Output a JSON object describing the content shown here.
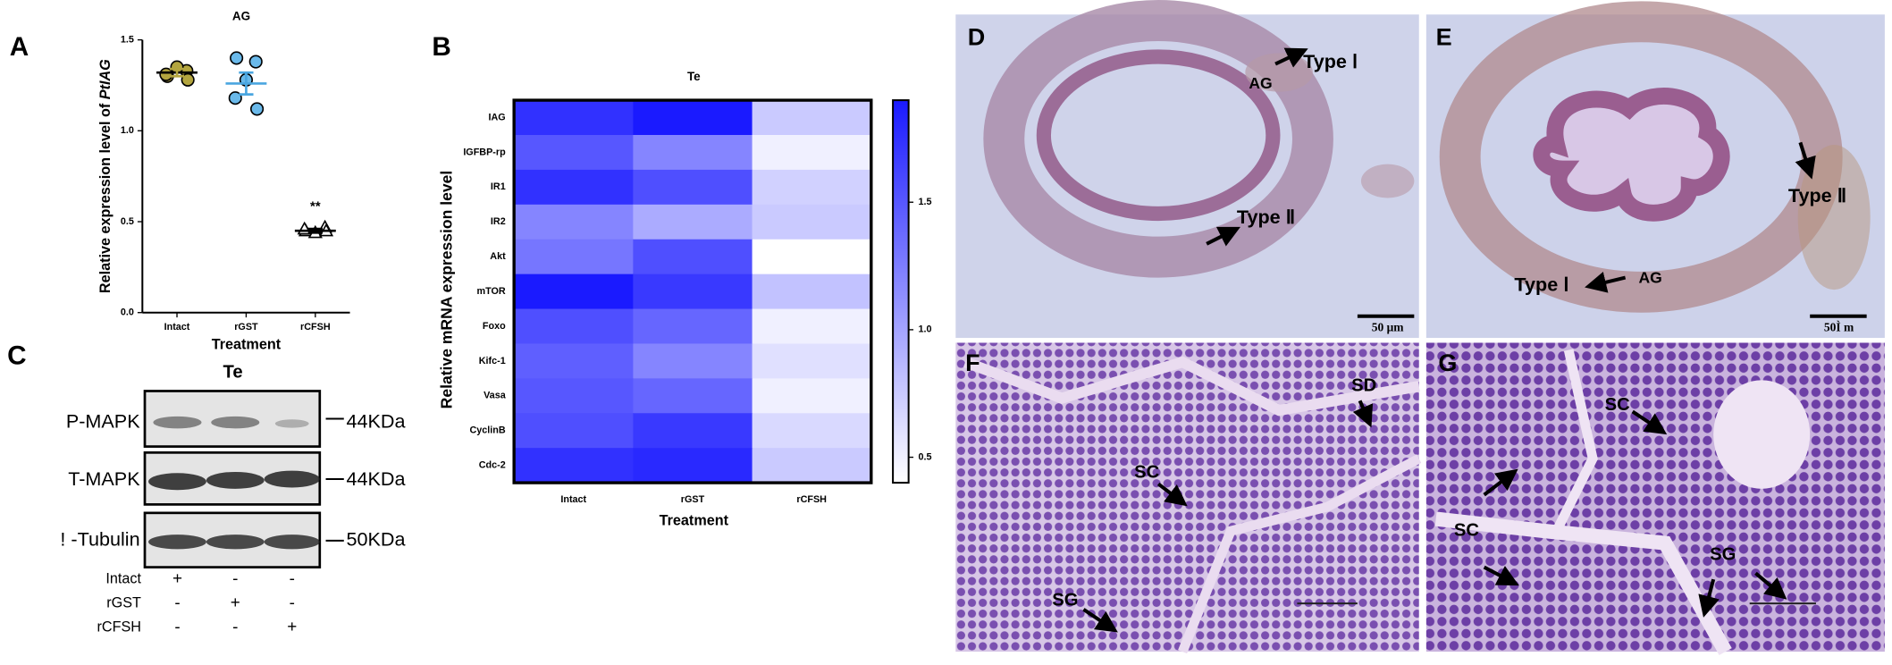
{
  "chart_data": [
    {
      "type": "dot",
      "panel": "A",
      "title": "AG",
      "ylabel": "Relative expression level of",
      "ylabel_gene": "PtIAG",
      "xlabel": "Treatment",
      "categories": [
        "Intact",
        "rGST",
        "rCFSH"
      ],
      "values": [
        [
          1.3,
          1.33,
          1.35,
          1.31,
          1.28
        ],
        [
          1.4,
          1.38,
          1.28,
          1.18,
          1.12
        ],
        [
          0.45,
          0.47,
          0.44,
          0.46,
          0.45
        ]
      ],
      "means": [
        1.32,
        1.26,
        0.45
      ],
      "errors": [
        0.02,
        0.06,
        0.01
      ],
      "colors": [
        "#b3a53f",
        "#6ab9ea",
        "#ffffff"
      ],
      "markers": [
        "circle",
        "circle",
        "triangle"
      ],
      "annotation": "**",
      "annotation_category": 2,
      "annotation_value": 0.58,
      "ylim": [
        0,
        1.5
      ],
      "yticks": [
        {
          "value": 0,
          "label": "0.0"
        },
        {
          "value": 0.5,
          "label": "0.5"
        },
        {
          "value": 1,
          "label": "1.0"
        },
        {
          "value": 1.5,
          "label": "1.5"
        }
      ]
    },
    {
      "type": "heatmap",
      "panel": "B",
      "title": "Te",
      "ylabel": "Relative mRNA expression level",
      "xlabel": "Treatment",
      "rows": [
        "IAG",
        "IGFBP-rp",
        "IR1",
        "IR2",
        "Akt",
        "mTOR",
        "Foxo",
        "Kifc-1",
        "Vasa",
        "CyclinB",
        "Cdc-2"
      ],
      "categories": [
        "Intact",
        "rGST",
        "rCFSH"
      ],
      "values": [
        [
          1.75,
          1.9,
          0.75
        ],
        [
          1.5,
          1.2,
          0.5
        ],
        [
          1.75,
          1.55,
          0.7
        ],
        [
          1.2,
          0.95,
          0.75
        ],
        [
          1.3,
          1.55,
          0.4
        ],
        [
          1.9,
          1.7,
          0.8
        ],
        [
          1.55,
          1.4,
          0.5
        ],
        [
          1.45,
          1.2,
          0.6
        ],
        [
          1.5,
          1.4,
          0.5
        ],
        [
          1.55,
          1.7,
          0.65
        ],
        [
          1.75,
          1.8,
          0.75
        ]
      ],
      "colors": [
        "#ffffff",
        "#1a1aff"
      ],
      "zlim": [
        0.4,
        1.9
      ],
      "zticks": [
        0.5,
        {
          "value": 1,
          "label": "1.0"
        },
        1.5
      ]
    }
  ],
  "blot": {
    "panel": "C",
    "title": "Te",
    "proteins": [
      "P-MAPK",
      "T-MAPK",
      "! -Tubulin"
    ],
    "sizes": [
      "44KDa",
      "44KDa",
      "50KDa"
    ],
    "treatments": [
      {
        "name": "Intact",
        "signs": [
          "+",
          "-",
          "-"
        ]
      },
      {
        "name": "rGST",
        "signs": [
          "-",
          "+",
          "-"
        ]
      },
      {
        "name": "rCFSH",
        "signs": [
          "-",
          "-",
          "+"
        ]
      }
    ]
  },
  "micrographs": [
    {
      "panel": "D",
      "labels": [
        "Type Ⅰ",
        "AG",
        "Type Ⅱ"
      ],
      "scale_bar": "50 μm"
    },
    {
      "panel": "E",
      "labels": [
        "Type Ⅱ",
        "Type Ⅰ",
        "AG"
      ],
      "scale_bar": "50Ì m"
    },
    {
      "panel": "F",
      "labels": [
        "SD",
        "SC",
        "SG"
      ]
    },
    {
      "panel": "G",
      "labels": [
        "SC",
        "SC",
        "SG"
      ]
    }
  ]
}
